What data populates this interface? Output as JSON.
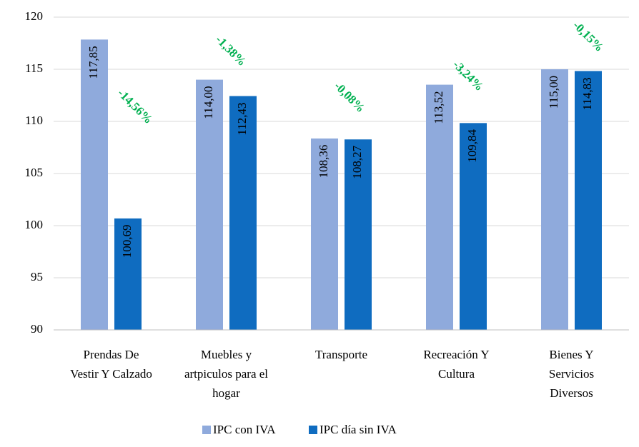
{
  "chart_data": {
    "type": "bar",
    "categories": [
      "Prendas De Vestir Y Calzado",
      "Muebles y artpiculos para el hogar",
      "Transporte",
      "Recreación Y Cultura",
      "Bienes Y Servicios Diversos"
    ],
    "series": [
      {
        "name": "IPC con IVA",
        "color": "#8faadc",
        "values": [
          117.85,
          114.0,
          108.36,
          113.52,
          115.0
        ],
        "value_labels": [
          "117,85",
          "114,00",
          "108,36",
          "113,52",
          "115,00"
        ]
      },
      {
        "name": "IPC día sin IVA",
        "color": "#0f6cc0",
        "values": [
          100.69,
          112.43,
          108.27,
          109.84,
          114.83
        ],
        "value_labels": [
          "100,69",
          "112,43",
          "108,27",
          "109,84",
          "114,83"
        ]
      }
    ],
    "annotations": [
      "-14,56%",
      "-1,38%",
      "-0,08%",
      "-3,24%",
      "-0,15%"
    ],
    "ylim": [
      90,
      120
    ],
    "yticks": [
      90,
      95,
      100,
      105,
      110,
      115,
      120
    ],
    "grid": true,
    "legend": "bottom"
  }
}
